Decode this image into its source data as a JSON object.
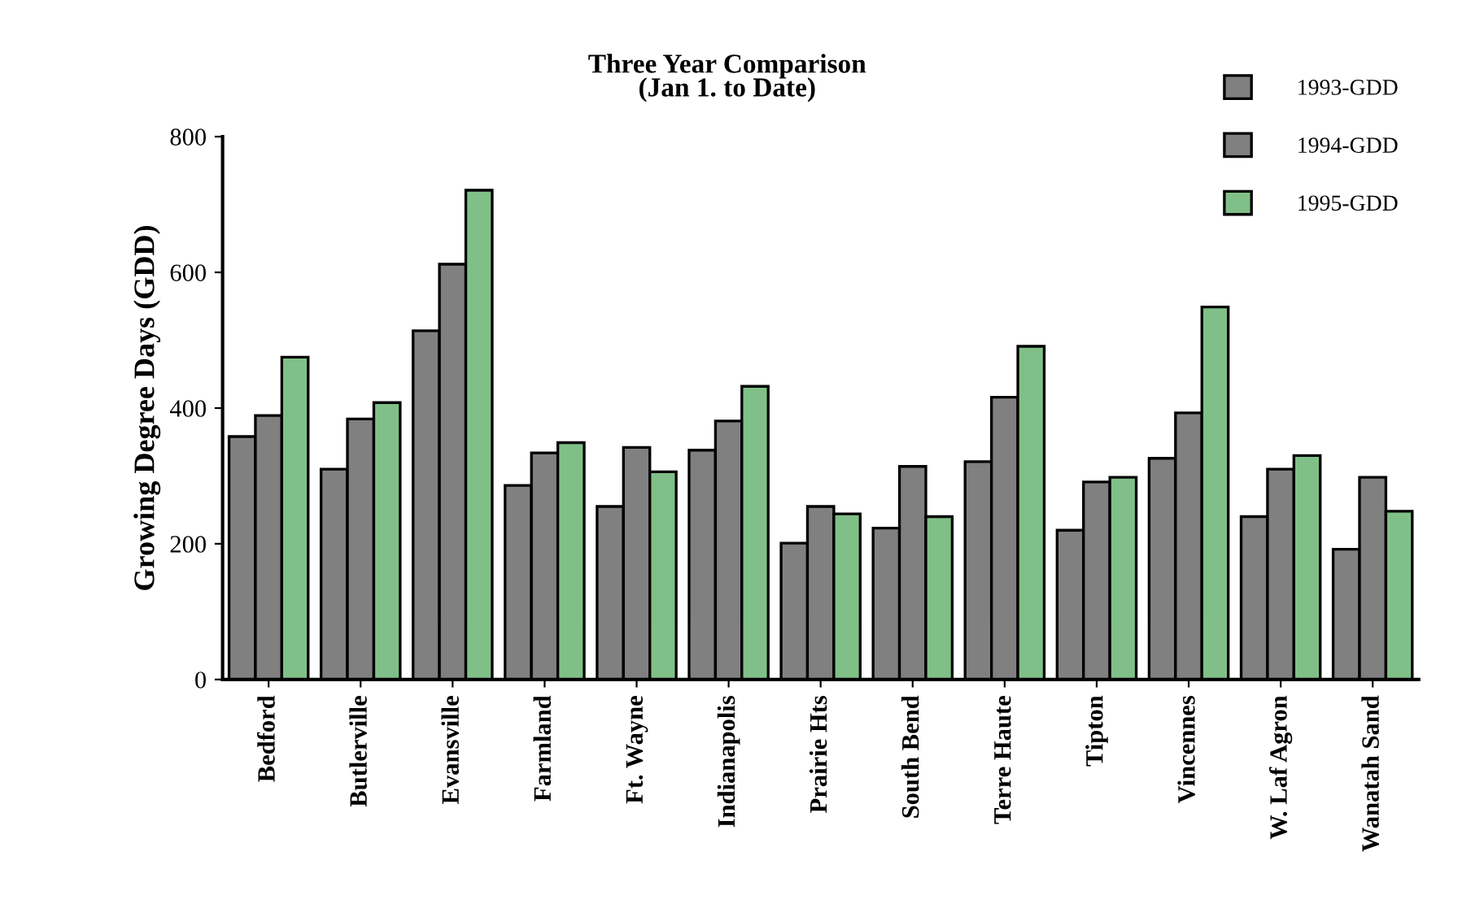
{
  "chart_data": {
    "type": "bar",
    "title": "Three Year Comparison\n(Jan 1. to Date)",
    "ylabel": "Growing Degree Days (GDD)",
    "categories": [
      "Bedford",
      "Butlerville",
      "Evansville",
      "Farmland",
      "Ft. Wayne",
      "Indianapolis",
      "Prairie Hts",
      "South Bend",
      "Terre Haute",
      "Tipton",
      "Vincennes",
      "W. Laf Agron",
      "Wanatah Sand"
    ],
    "series": [
      {
        "name": "1993-GDD",
        "color": "#808080",
        "values": [
          358,
          310,
          514,
          286,
          255,
          338,
          201,
          223,
          321,
          220,
          326,
          240,
          192
        ]
      },
      {
        "name": "1994-GDD",
        "color": "#808080",
        "values": [
          389,
          384,
          612,
          334,
          342,
          381,
          255,
          314,
          416,
          291,
          393,
          310,
          298
        ]
      },
      {
        "name": "1995-GDD",
        "color": "#80c088",
        "values": [
          475,
          408,
          721,
          349,
          306,
          432,
          244,
          240,
          491,
          298,
          549,
          330,
          248
        ]
      }
    ],
    "ylim": [
      0,
      800
    ],
    "yticks": [
      0,
      200,
      400,
      600,
      800
    ],
    "grid": false,
    "legend": "top right"
  }
}
